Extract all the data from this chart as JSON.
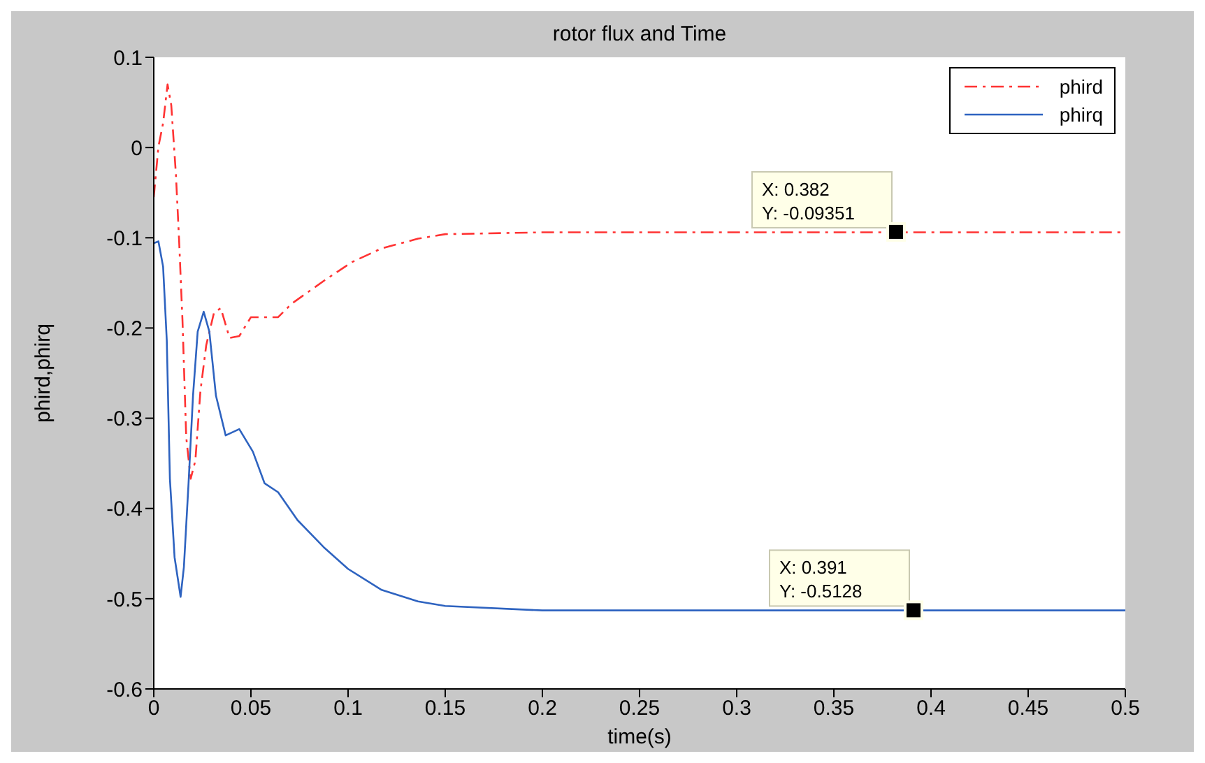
{
  "chart_data": {
    "type": "line",
    "title": "rotor flux and Time",
    "xlabel": "time(s)",
    "ylabel": "phird,phirq",
    "xlim": [
      0,
      0.5
    ],
    "xticks": [
      0,
      0.05,
      0.1,
      0.15,
      0.2,
      0.25,
      0.3,
      0.35,
      0.4,
      0.45,
      0.5
    ],
    "ylim": [
      -0.6,
      0.1
    ],
    "yticks": [
      0.1,
      0,
      -0.1,
      -0.2,
      -0.3,
      -0.4,
      -0.5,
      -0.6
    ],
    "grid": false,
    "legend": "top right",
    "marker": "none",
    "series": [
      {
        "name": "phird",
        "color": "#ff3333",
        "line_style": "dashed",
        "x": [
          0,
          0.0024,
          0.0048,
          0.0071,
          0.009,
          0.0114,
          0.013,
          0.0148,
          0.0167,
          0.019,
          0.0214,
          0.024,
          0.027,
          0.031,
          0.0345,
          0.039,
          0.044,
          0.05,
          0.064,
          0.071,
          0.088,
          0.102,
          0.117,
          0.136,
          0.15,
          0.2,
          0.3,
          0.382,
          0.5
        ],
        "values": [
          -0.055,
          0.001,
          0.027,
          0.07,
          0.047,
          -0.03,
          -0.101,
          -0.193,
          -0.321,
          -0.367,
          -0.347,
          -0.27,
          -0.219,
          -0.183,
          -0.178,
          -0.211,
          -0.209,
          -0.188,
          -0.188,
          -0.173,
          -0.147,
          -0.127,
          -0.112,
          -0.101,
          -0.096,
          -0.094,
          -0.094,
          -0.094,
          -0.094
        ]
      },
      {
        "name": "phirq",
        "color": "#2e63c0",
        "line_style": "solid",
        "x": [
          0,
          0.0024,
          0.0048,
          0.0067,
          0.0083,
          0.0107,
          0.0138,
          0.0155,
          0.0179,
          0.0202,
          0.0226,
          0.0257,
          0.0286,
          0.032,
          0.037,
          0.044,
          0.051,
          0.057,
          0.064,
          0.074,
          0.088,
          0.1,
          0.117,
          0.136,
          0.15,
          0.2,
          0.3,
          0.5
        ],
        "values": [
          -0.106,
          -0.104,
          -0.132,
          -0.214,
          -0.367,
          -0.454,
          -0.498,
          -0.465,
          -0.372,
          -0.275,
          -0.204,
          -0.182,
          -0.204,
          -0.275,
          -0.319,
          -0.312,
          -0.337,
          -0.372,
          -0.382,
          -0.413,
          -0.444,
          -0.467,
          -0.49,
          -0.503,
          -0.508,
          -0.513,
          -0.513,
          -0.513
        ]
      }
    ],
    "annotations": [
      {
        "text": "X: 0.382\nY: -0.09351",
        "x": 0.382,
        "y": -0.09351
      },
      {
        "text": "X: 0.391\nY: -0.5128",
        "x": 0.391,
        "y": -0.5128
      }
    ]
  }
}
